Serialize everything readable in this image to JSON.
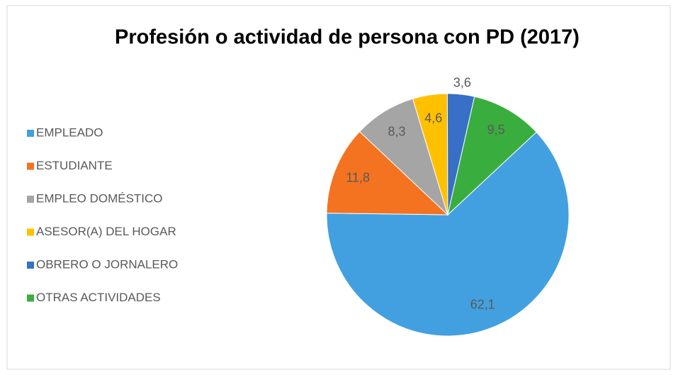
{
  "chart_data": {
    "type": "pie",
    "title": "Profesión o actividad de persona con PD (2017)",
    "categories": [
      "EMPLEADO",
      "ESTUDIANTE",
      "EMPLEO DOMÉSTICO",
      "ASESOR(A) DEL HOGAR",
      "OBRERO O JORNALERO",
      "OTRAS ACTIVIDADES"
    ],
    "values": [
      62.1,
      11.8,
      8.3,
      4.6,
      3.6,
      9.5
    ],
    "value_labels": [
      "62,1",
      "11,8",
      "8,3",
      "4,6",
      "3,6",
      "9,5"
    ],
    "colors": [
      "#42a0e0",
      "#f47321",
      "#a5a5a5",
      "#ffc000",
      "#3770c6",
      "#3aad3f"
    ],
    "legend": "left"
  }
}
